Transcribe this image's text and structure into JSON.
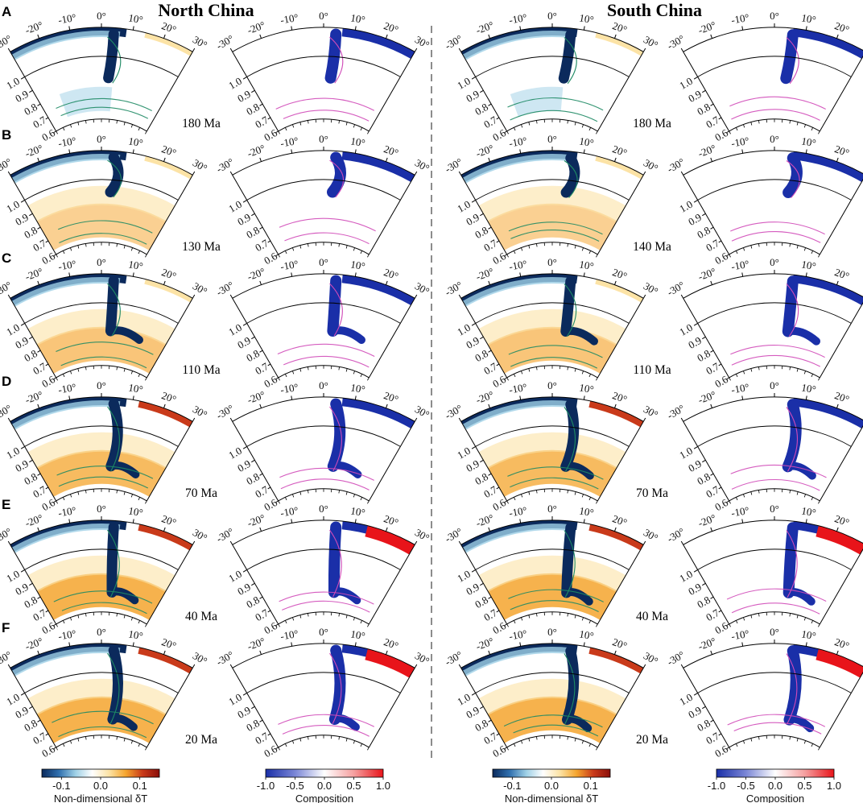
{
  "titles": {
    "left": "North China",
    "right": "South China"
  },
  "chart_data": {
    "type": "heatmap",
    "panel_grid": {
      "rows": [
        "A",
        "B",
        "C",
        "D",
        "E",
        "F"
      ],
      "columns": [
        "North China δT",
        "North China Composition",
        "South China δT",
        "South China Composition"
      ]
    },
    "angle_ticks": [
      "-30°",
      "-20°",
      "-10°",
      "0°",
      "10°",
      "20°",
      "30°"
    ],
    "radius_ticks": [
      "1.0",
      "0.9",
      "0.8",
      "0.7",
      "0.6"
    ],
    "radius_range": [
      0.55,
      1.0
    ],
    "angle_range": [
      -30,
      30
    ],
    "ages": {
      "north_china": [
        "180 Ma",
        "130 Ma",
        "110 Ma",
        "70 Ma",
        "40 Ma",
        "20 Ma"
      ],
      "south_china": [
        "180 Ma",
        "140 Ma",
        "110 Ma",
        "70 Ma",
        "40 Ma",
        "20 Ma"
      ]
    },
    "colorbars": [
      {
        "label": "Non-dimensional δT",
        "ticks": [
          "-0.1",
          "0.0",
          "0.1"
        ],
        "range": [
          -0.15,
          0.15
        ],
        "colors": [
          "#0b2a5c",
          "#2f6fae",
          "#9ed0e6",
          "#ffffff",
          "#fce3a6",
          "#f5a52e",
          "#c93a1a",
          "#8b0e0a"
        ]
      },
      {
        "label": "Composition",
        "ticks": [
          "-1.0",
          "-0.5",
          "0.0",
          "0.5",
          "1.0"
        ],
        "range": [
          -1.0,
          1.0
        ],
        "colors": [
          "#1a2fa8",
          "#7a86d6",
          "#ffffff",
          "#f5a0a0",
          "#e8141a"
        ]
      }
    ]
  }
}
